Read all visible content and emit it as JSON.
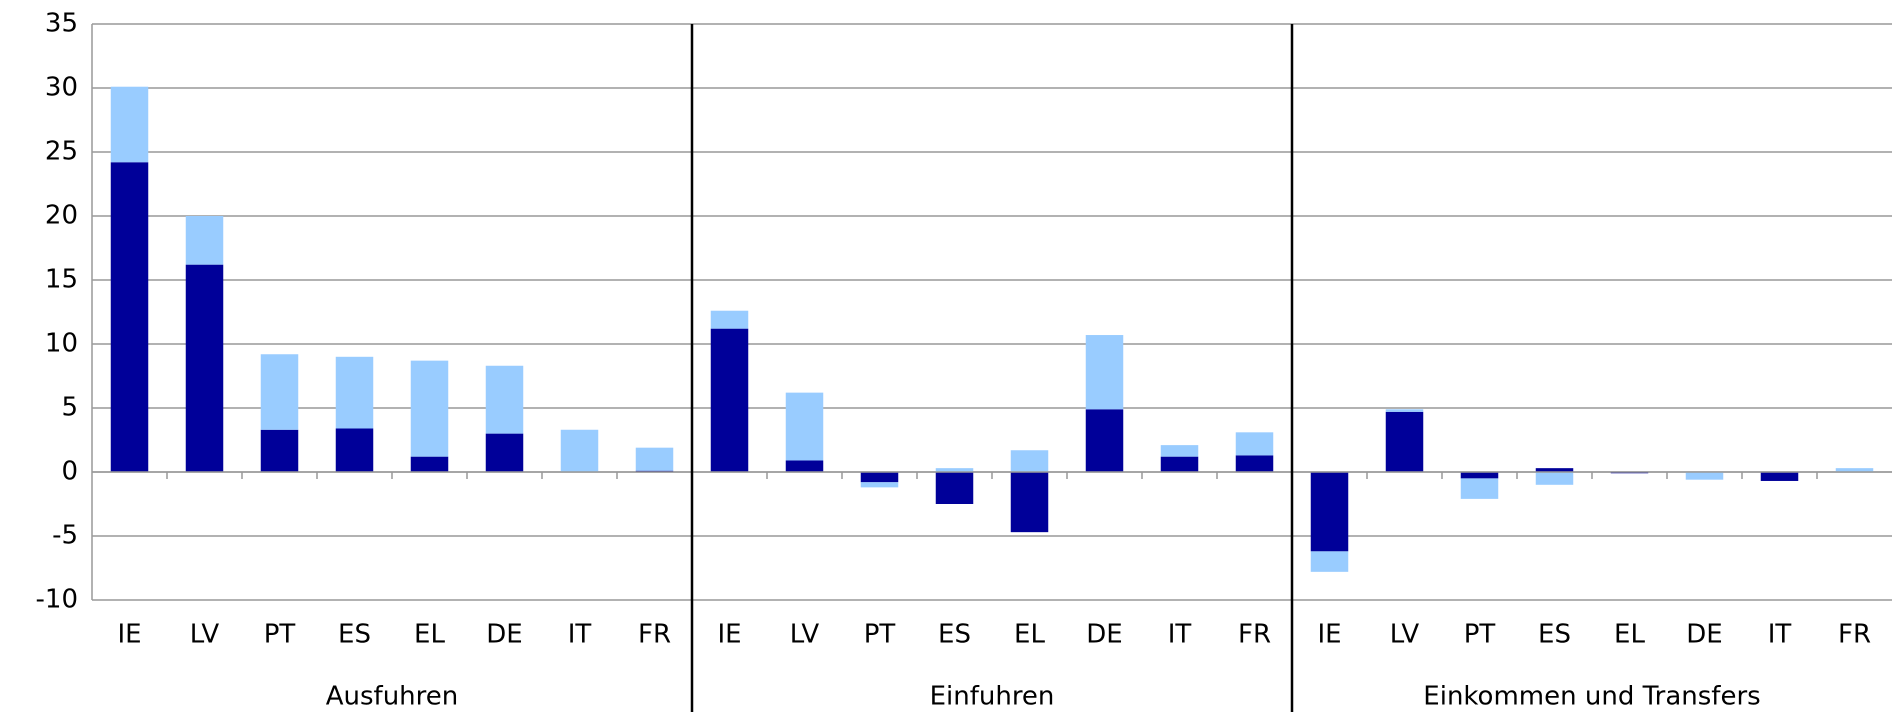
{
  "chart_data": {
    "type": "bar",
    "stacked": true,
    "groups": [
      "Ausfuhren",
      "Einfuhren",
      "Einkommen und Transfers"
    ],
    "categories": [
      "IE",
      "LV",
      "PT",
      "ES",
      "EL",
      "DE",
      "IT",
      "FR",
      "IE",
      "LV",
      "PT",
      "ES",
      "EL",
      "DE",
      "IT",
      "FR",
      "IE",
      "LV",
      "PT",
      "ES",
      "EL",
      "DE",
      "IT",
      "FR"
    ],
    "series": [
      {
        "color": "#000099",
        "values": [
          24.2,
          16.2,
          3.3,
          3.4,
          1.2,
          3.0,
          0,
          0.1,
          11.2,
          0.9,
          -0.8,
          -2.5,
          -4.7,
          4.9,
          1.2,
          1.3,
          -6.2,
          4.7,
          -0.5,
          0.3,
          -0.1,
          0,
          -0.7,
          0
        ]
      },
      {
        "color": "#99ccff",
        "values": [
          5.9,
          3.8,
          5.9,
          5.6,
          7.5,
          5.3,
          3.3,
          1.8,
          1.4,
          5.3,
          -0.4,
          0.3,
          1.7,
          5.8,
          0.9,
          1.8,
          -1.6,
          0.2,
          -1.6,
          -1.0,
          0,
          -0.6,
          0,
          0.3
        ]
      }
    ],
    "ylim": [
      -10,
      35
    ],
    "yticks": [
      -10,
      -5,
      0,
      5,
      10,
      15,
      20,
      25,
      30,
      35
    ],
    "grid": true
  }
}
